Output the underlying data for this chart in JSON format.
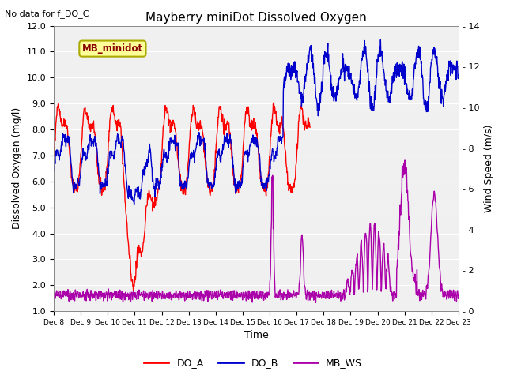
{
  "title": "Mayberry miniDot Dissolved Oxygen",
  "note": "No data for f_DO_C",
  "xlabel": "Time",
  "ylabel_left": "Dissolved Oxygen (mg/l)",
  "ylabel_right": "Wind Speed (m/s)",
  "ylim_left": [
    1.0,
    12.0
  ],
  "ylim_right": [
    0,
    14
  ],
  "yticks_left": [
    1.0,
    2.0,
    3.0,
    4.0,
    5.0,
    6.0,
    7.0,
    8.0,
    9.0,
    10.0,
    11.0,
    12.0
  ],
  "yticks_right_vals": [
    0,
    2,
    4,
    6,
    8,
    10,
    12,
    14
  ],
  "xtick_labels": [
    "Dec 8",
    "Dec 9",
    "Dec 10",
    "Dec 11",
    "Dec 12",
    "Dec 13",
    "Dec 14",
    "Dec 15",
    "Dec 16",
    "Dec 17",
    "Dec 18",
    "Dec 19",
    "Dec 20",
    "Dec 21",
    "Dec 22",
    "Dec 23"
  ],
  "color_DO_A": "#FF0000",
  "color_DO_B": "#0000CC",
  "color_MB_WS": "#AA00AA",
  "bg_color": "#FFFFFF",
  "ax_bg_color": "#F0F0F0",
  "grid_color": "#FFFFFF",
  "legend_label": "MB_minidot",
  "legend_label_color": "#880000",
  "legend_box_face": "#FFFF99",
  "legend_box_edge": "#AAAA00",
  "legend_items": [
    "DO_A",
    "DO_B",
    "MB_WS"
  ],
  "line_width": 1.0,
  "title_fontsize": 11,
  "label_fontsize": 9,
  "tick_fontsize": 8,
  "note_fontsize": 8
}
